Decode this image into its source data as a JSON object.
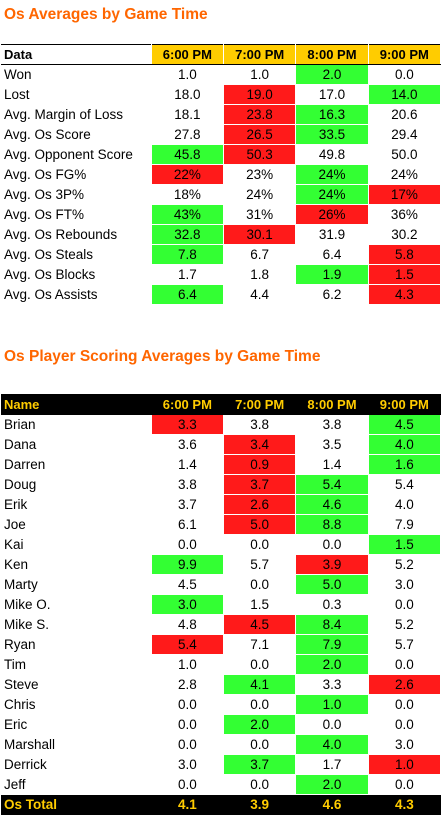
{
  "colors": {
    "green": "#33ff33",
    "red": "#ff1a1a",
    "title": "#ff6600",
    "header": "#ffcc00"
  },
  "table1": {
    "title": "Os Averages by Game Time",
    "header_label": "Data",
    "columns": [
      "6:00 PM",
      "7:00 PM",
      "8:00 PM",
      "9:00 PM"
    ],
    "rows": [
      {
        "label": "Won",
        "values": [
          "1.0",
          "1.0",
          "2.0",
          "0.0"
        ],
        "hl": [
          "",
          "",
          "g",
          ""
        ]
      },
      {
        "label": "Lost",
        "values": [
          "18.0",
          "19.0",
          "17.0",
          "14.0"
        ],
        "hl": [
          "",
          "r",
          "",
          "g"
        ]
      },
      {
        "label": "Avg. Margin of Loss",
        "values": [
          "18.1",
          "23.8",
          "16.3",
          "20.6"
        ],
        "hl": [
          "",
          "r",
          "g",
          ""
        ]
      },
      {
        "label": "Avg. Os Score",
        "values": [
          "27.8",
          "26.5",
          "33.5",
          "29.4"
        ],
        "hl": [
          "",
          "r",
          "g",
          ""
        ]
      },
      {
        "label": "Avg. Opponent Score",
        "values": [
          "45.8",
          "50.3",
          "49.8",
          "50.0"
        ],
        "hl": [
          "g",
          "r",
          "",
          ""
        ]
      },
      {
        "label": "Avg. Os FG%",
        "values": [
          "22%",
          "23%",
          "24%",
          "24%"
        ],
        "hl": [
          "r",
          "",
          "g",
          ""
        ]
      },
      {
        "label": "Avg. Os 3P%",
        "values": [
          "18%",
          "24%",
          "24%",
          "17%"
        ],
        "hl": [
          "",
          "",
          "g",
          "r"
        ]
      },
      {
        "label": "Avg. Os FT%",
        "values": [
          "43%",
          "31%",
          "26%",
          "36%"
        ],
        "hl": [
          "g",
          "",
          "r",
          ""
        ]
      },
      {
        "label": "Avg. Os Rebounds",
        "values": [
          "32.8",
          "30.1",
          "31.9",
          "30.2"
        ],
        "hl": [
          "g",
          "r",
          "",
          ""
        ]
      },
      {
        "label": "Avg. Os Steals",
        "values": [
          "7.8",
          "6.7",
          "6.4",
          "5.8"
        ],
        "hl": [
          "g",
          "",
          "",
          "r"
        ]
      },
      {
        "label": "Avg. Os Blocks",
        "values": [
          "1.7",
          "1.8",
          "1.9",
          "1.5"
        ],
        "hl": [
          "",
          "",
          "g",
          "r"
        ]
      },
      {
        "label": "Avg. Os Assists",
        "values": [
          "6.4",
          "4.4",
          "6.2",
          "4.3"
        ],
        "hl": [
          "g",
          "",
          "",
          "r"
        ]
      }
    ]
  },
  "table2": {
    "title": "Os Player Scoring Averages by Game Time",
    "header_label": "Name",
    "columns": [
      "6:00 PM",
      "7:00 PM",
      "8:00 PM",
      "9:00 PM"
    ],
    "rows": [
      {
        "label": "Brian",
        "values": [
          "3.3",
          "3.8",
          "3.8",
          "4.5"
        ],
        "hl": [
          "r",
          "",
          "",
          "g"
        ]
      },
      {
        "label": "Dana",
        "values": [
          "3.6",
          "3.4",
          "3.5",
          "4.0"
        ],
        "hl": [
          "",
          "r",
          "",
          "g"
        ]
      },
      {
        "label": "Darren",
        "values": [
          "1.4",
          "0.9",
          "1.4",
          "1.6"
        ],
        "hl": [
          "",
          "r",
          "",
          "g"
        ]
      },
      {
        "label": "Doug",
        "values": [
          "3.8",
          "3.7",
          "5.4",
          "5.4"
        ],
        "hl": [
          "",
          "r",
          "g",
          ""
        ]
      },
      {
        "label": "Erik",
        "values": [
          "3.7",
          "2.6",
          "4.6",
          "4.0"
        ],
        "hl": [
          "",
          "r",
          "g",
          ""
        ]
      },
      {
        "label": "Joe",
        "values": [
          "6.1",
          "5.0",
          "8.8",
          "7.9"
        ],
        "hl": [
          "",
          "r",
          "g",
          ""
        ]
      },
      {
        "label": "Kai",
        "values": [
          "0.0",
          "0.0",
          "0.0",
          "1.5"
        ],
        "hl": [
          "",
          "",
          "",
          "g"
        ]
      },
      {
        "label": "Ken",
        "values": [
          "9.9",
          "5.7",
          "3.9",
          "5.2"
        ],
        "hl": [
          "g",
          "",
          "r",
          ""
        ]
      },
      {
        "label": "Marty",
        "values": [
          "4.5",
          "0.0",
          "5.0",
          "3.0"
        ],
        "hl": [
          "",
          "",
          "g",
          ""
        ]
      },
      {
        "label": "Mike O.",
        "values": [
          "3.0",
          "1.5",
          "0.3",
          "0.0"
        ],
        "hl": [
          "g",
          "",
          "",
          ""
        ]
      },
      {
        "label": "Mike S.",
        "values": [
          "4.8",
          "4.5",
          "8.4",
          "5.2"
        ],
        "hl": [
          "",
          "r",
          "g",
          ""
        ]
      },
      {
        "label": "Ryan",
        "values": [
          "5.4",
          "7.1",
          "7.9",
          "5.7"
        ],
        "hl": [
          "r",
          "",
          "g",
          ""
        ]
      },
      {
        "label": "Tim",
        "values": [
          "1.0",
          "0.0",
          "2.0",
          "0.0"
        ],
        "hl": [
          "",
          "",
          "g",
          ""
        ]
      },
      {
        "label": "Steve",
        "values": [
          "2.8",
          "4.1",
          "3.3",
          "2.6"
        ],
        "hl": [
          "",
          "g",
          "",
          "r"
        ]
      },
      {
        "label": "Chris",
        "values": [
          "0.0",
          "0.0",
          "1.0",
          "0.0"
        ],
        "hl": [
          "",
          "",
          "g",
          ""
        ]
      },
      {
        "label": "Eric",
        "values": [
          "0.0",
          "2.0",
          "0.0",
          "0.0"
        ],
        "hl": [
          "",
          "g",
          "",
          ""
        ]
      },
      {
        "label": "Marshall",
        "values": [
          "0.0",
          "0.0",
          "4.0",
          "3.0"
        ],
        "hl": [
          "",
          "",
          "g",
          ""
        ]
      },
      {
        "label": "Derrick",
        "values": [
          "3.0",
          "3.7",
          "1.7",
          "1.0"
        ],
        "hl": [
          "",
          "g",
          "",
          "r"
        ]
      },
      {
        "label": "Jeff",
        "values": [
          "0.0",
          "0.0",
          "2.0",
          "0.0"
        ],
        "hl": [
          "",
          "",
          "g",
          ""
        ]
      }
    ],
    "total": {
      "label": "Os Total",
      "values": [
        "4.1",
        "3.9",
        "4.6",
        "4.3"
      ]
    }
  }
}
